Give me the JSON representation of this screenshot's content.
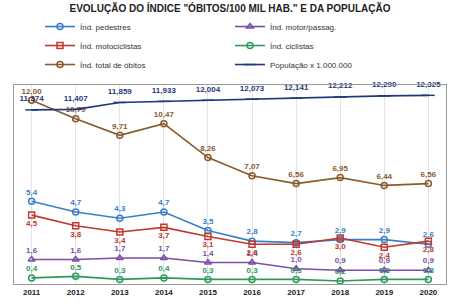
{
  "chart_data": {
    "type": "line",
    "title": "EVOLUÇÃO DO ÍNDICE \"ÓBITOS/100 MIL HAB.\" E DA POPULAÇÃO",
    "categories": [
      "2011",
      "2012",
      "2013",
      "2014",
      "2015",
      "2016",
      "2017",
      "2018",
      "2019",
      "2020"
    ],
    "ylim": [
      0,
      13
    ],
    "grid": false,
    "legend": "top",
    "data_labels": true,
    "tick_labels": "x",
    "series": [
      {
        "name": "Índ. pedestres",
        "color": "#3a7dc9",
        "marker": "circle-open",
        "values": [
          5.4,
          4.7,
          4.3,
          4.7,
          3.5,
          2.8,
          2.7,
          2.9,
          2.9,
          2.6
        ],
        "value_labels": [
          "5,4",
          "4,7",
          "4,3",
          "4,7",
          "3,5",
          "2,8",
          "2,7",
          "2,9",
          "2,9",
          "2,6"
        ]
      },
      {
        "name": "Índ. motor/passag.",
        "color": "#7b4fa6",
        "marker": "triangle-up-open",
        "values": [
          1.6,
          1.6,
          1.7,
          1.7,
          1.4,
          1.4,
          1.0,
          0.9,
          0.9,
          0.9
        ],
        "value_labels": [
          "1,6",
          "1,6",
          "1,7",
          "1,7",
          "1,4",
          "1,4",
          "1,0",
          "0,9",
          "0,9",
          "0,9"
        ]
      },
      {
        "name": "Índ. motociclistas",
        "color": "#c0392b",
        "marker": "square-open",
        "values": [
          4.5,
          3.8,
          3.4,
          3.7,
          3.1,
          2.6,
          2.6,
          3.0,
          2.4,
          2.8
        ],
        "value_labels": [
          "4,5",
          "3,8",
          "3,4",
          "3,7",
          "3,1",
          "2,6",
          "2,6",
          "3,0",
          "2,4",
          "2,8"
        ]
      },
      {
        "name": "Índ. ciclistas",
        "color": "#2e9b5a",
        "marker": "circle-open",
        "values": [
          0.4,
          0.5,
          0.3,
          0.4,
          0.3,
          0.3,
          0.3,
          0.2,
          0.3,
          0.3
        ],
        "value_labels": [
          "0,4",
          "0,5",
          "0,3",
          "0,4",
          "0,3",
          "0,3",
          "0,3",
          "0,2",
          "0,3",
          "0,3"
        ]
      },
      {
        "name": "Índ. total de óbitos",
        "color": "#8b5a2b",
        "marker": "circle-open",
        "values": [
          12.0,
          10.79,
          9.71,
          10.47,
          8.26,
          7.07,
          6.56,
          6.95,
          6.44,
          6.56
        ],
        "value_labels": [
          "12,00",
          "10,79",
          "9,71",
          "10,47",
          "8,26",
          "7,07",
          "6,56",
          "6,95",
          "6,44",
          "6,56"
        ]
      },
      {
        "name": "População x 1.000.000",
        "color": "#1f3a7a",
        "marker": "line-ew-open",
        "values": [
          11.374,
          11.407,
          11.859,
          11.933,
          12.004,
          12.073,
          12.141,
          12.212,
          12.29,
          12.325
        ],
        "value_labels": [
          "11,374",
          "11,407",
          "11,859",
          "11,933",
          "12,004",
          "12,073",
          "12,141",
          "12,212",
          "12,290",
          "12,325"
        ]
      }
    ]
  }
}
